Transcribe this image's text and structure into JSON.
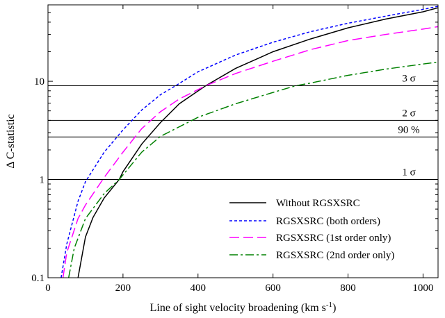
{
  "chart_data": {
    "type": "line",
    "title": "",
    "xlabel": "Line of sight velocity broadening (km s",
    "xlabel_sup": "-1",
    "xlabel_end": ")",
    "ylabel": "Δ C-statistic",
    "xlim": [
      0,
      1040
    ],
    "ylim": [
      0.1,
      60
    ],
    "yscale": "log",
    "grid": false,
    "legend_position": "bottom-right",
    "x_ticks": [
      0,
      200,
      400,
      600,
      800,
      1000
    ],
    "x_tick_labels": [
      "0",
      "200",
      "400",
      "600",
      "800",
      "1000"
    ],
    "y_ticks": [
      0.1,
      1,
      10
    ],
    "y_tick_labels": [
      "0.1",
      "1",
      "10"
    ],
    "reference_lines": [
      {
        "y": 1.0,
        "label": "1 σ"
      },
      {
        "y": 2.71,
        "label": "90 %"
      },
      {
        "y": 4.0,
        "label": "2 σ"
      },
      {
        "y": 9.0,
        "label": "3 σ"
      }
    ],
    "series": [
      {
        "name": "Without RGSXSRC",
        "color": "#000000",
        "dash": "solid",
        "x": [
          80,
          100,
          120,
          150,
          190,
          200,
          250,
          300,
          350,
          420,
          500,
          600,
          700,
          800,
          900,
          1000,
          1040
        ],
        "y": [
          0.1,
          0.26,
          0.41,
          0.65,
          1.0,
          1.2,
          2.3,
          3.8,
          5.9,
          9.0,
          13.5,
          20,
          27,
          35,
          43,
          51,
          56
        ]
      },
      {
        "name": "RGSXSRC (both orders)",
        "color": "#0000ff",
        "dash": "dotted",
        "x": [
          35,
          50,
          80,
          100,
          150,
          200,
          250,
          300,
          340,
          400,
          500,
          600,
          700,
          800,
          900,
          1000,
          1040
        ],
        "y": [
          0.1,
          0.22,
          0.6,
          0.95,
          1.9,
          3.2,
          5.1,
          7.3,
          9.0,
          12.5,
          18.5,
          25,
          32,
          39,
          46,
          54,
          58
        ]
      },
      {
        "name": "RGSXSRC (1st order only)",
        "color": "#ff00ff",
        "dash": "long-dash",
        "x": [
          40,
          50,
          80,
          100,
          150,
          200,
          250,
          300,
          350,
          420,
          500,
          600,
          700,
          800,
          900,
          1000,
          1040
        ],
        "y": [
          0.1,
          0.18,
          0.4,
          0.55,
          1.05,
          1.9,
          3.3,
          4.9,
          6.6,
          9.0,
          12,
          16,
          21,
          26,
          30,
          34,
          36
        ]
      },
      {
        "name": "RGSXSRC (2nd order only)",
        "color": "#008000",
        "dash": "dash-dot",
        "x": [
          55,
          70,
          100,
          150,
          190,
          250,
          300,
          400,
          500,
          600,
          660,
          700,
          800,
          900,
          1000,
          1040
        ],
        "y": [
          0.1,
          0.2,
          0.4,
          0.72,
          1.0,
          1.9,
          2.75,
          4.3,
          5.9,
          7.7,
          9.0,
          9.6,
          11.5,
          13.3,
          15,
          15.7
        ]
      }
    ]
  }
}
